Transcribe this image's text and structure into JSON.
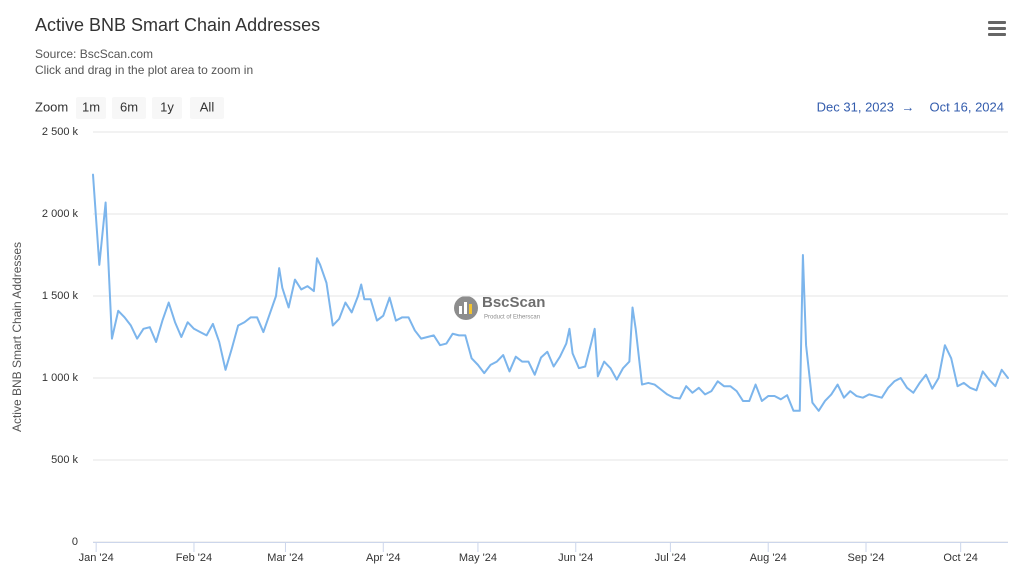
{
  "chart_data": {
    "type": "line",
    "title": "Active BNB Smart Chain Addresses",
    "source": "Source: BscScan.com",
    "instruction": "Click and drag in the plot area to zoom in",
    "zoom": {
      "label": "Zoom",
      "buttons": [
        "1m",
        "6m",
        "1y",
        "All"
      ]
    },
    "range": {
      "from": "Dec 31, 2023",
      "separator": "→",
      "to": "Oct 16, 2024"
    },
    "watermark": {
      "title": "BscScan",
      "subtitle": "Product of Etherscan"
    },
    "y_label": "Active BNB Smart Chain Addresses",
    "grid": true,
    "xlim": [
      "2023-12-31",
      "2024-10-16"
    ],
    "xticks": [
      {
        "value": "2024-01-01",
        "label": "Jan '24"
      },
      {
        "value": "2024-02-01",
        "label": "Feb '24"
      },
      {
        "value": "2024-03-01",
        "label": "Mar '24"
      },
      {
        "value": "2024-04-01",
        "label": "Apr '24"
      },
      {
        "value": "2024-05-01",
        "label": "May '24"
      },
      {
        "value": "2024-06-01",
        "label": "Jun '24"
      },
      {
        "value": "2024-07-01",
        "label": "Jul '24"
      },
      {
        "value": "2024-08-01",
        "label": "Aug '24"
      },
      {
        "value": "2024-09-01",
        "label": "Sep '24"
      },
      {
        "value": "2024-10-01",
        "label": "Oct '24"
      }
    ],
    "ylim": [
      0,
      2500000
    ],
    "yticks": [
      {
        "value": 0,
        "label": "0"
      },
      {
        "value": 500000,
        "label": "500 k"
      },
      {
        "value": 1000000,
        "label": "1 000 k"
      },
      {
        "value": 1500000,
        "label": "1 500 k"
      },
      {
        "value": 2000000,
        "label": "2 000 k"
      },
      {
        "value": 2500000,
        "label": "2 500 k"
      }
    ],
    "x": [
      "2023-12-31",
      "2024-01-02",
      "2024-01-04",
      "2024-01-06",
      "2024-01-08",
      "2024-01-10",
      "2024-01-12",
      "2024-01-14",
      "2024-01-16",
      "2024-01-18",
      "2024-01-20",
      "2024-01-22",
      "2024-01-24",
      "2024-01-26",
      "2024-01-28",
      "2024-01-30",
      "2024-02-01",
      "2024-02-03",
      "2024-02-05",
      "2024-02-07",
      "2024-02-09",
      "2024-02-11",
      "2024-02-13",
      "2024-02-15",
      "2024-02-17",
      "2024-02-19",
      "2024-02-21",
      "2024-02-23",
      "2024-02-25",
      "2024-02-27",
      "2024-02-28",
      "2024-02-29",
      "2024-03-02",
      "2024-03-04",
      "2024-03-06",
      "2024-03-08",
      "2024-03-10",
      "2024-03-11",
      "2024-03-12",
      "2024-03-14",
      "2024-03-16",
      "2024-03-18",
      "2024-03-20",
      "2024-03-22",
      "2024-03-24",
      "2024-03-25",
      "2024-03-26",
      "2024-03-28",
      "2024-03-30",
      "2024-04-01",
      "2024-04-03",
      "2024-04-05",
      "2024-04-07",
      "2024-04-09",
      "2024-04-11",
      "2024-04-13",
      "2024-04-15",
      "2024-04-17",
      "2024-04-19",
      "2024-04-21",
      "2024-04-23",
      "2024-04-25",
      "2024-04-27",
      "2024-04-29",
      "2024-05-01",
      "2024-05-03",
      "2024-05-05",
      "2024-05-07",
      "2024-05-09",
      "2024-05-11",
      "2024-05-13",
      "2024-05-15",
      "2024-05-17",
      "2024-05-19",
      "2024-05-21",
      "2024-05-23",
      "2024-05-25",
      "2024-05-27",
      "2024-05-29",
      "2024-05-30",
      "2024-05-31",
      "2024-06-02",
      "2024-06-04",
      "2024-06-06",
      "2024-06-07",
      "2024-06-08",
      "2024-06-10",
      "2024-06-12",
      "2024-06-14",
      "2024-06-16",
      "2024-06-18",
      "2024-06-19",
      "2024-06-20",
      "2024-06-22",
      "2024-06-24",
      "2024-06-26",
      "2024-06-28",
      "2024-06-30",
      "2024-07-02",
      "2024-07-04",
      "2024-07-06",
      "2024-07-08",
      "2024-07-10",
      "2024-07-12",
      "2024-07-14",
      "2024-07-16",
      "2024-07-18",
      "2024-07-20",
      "2024-07-22",
      "2024-07-24",
      "2024-07-26",
      "2024-07-28",
      "2024-07-30",
      "2024-08-01",
      "2024-08-03",
      "2024-08-05",
      "2024-08-07",
      "2024-08-09",
      "2024-08-11",
      "2024-08-12",
      "2024-08-13",
      "2024-08-15",
      "2024-08-17",
      "2024-08-19",
      "2024-08-21",
      "2024-08-23",
      "2024-08-25",
      "2024-08-27",
      "2024-08-29",
      "2024-08-31",
      "2024-09-02",
      "2024-09-04",
      "2024-09-06",
      "2024-09-08",
      "2024-09-10",
      "2024-09-12",
      "2024-09-14",
      "2024-09-16",
      "2024-09-18",
      "2024-09-20",
      "2024-09-22",
      "2024-09-24",
      "2024-09-26",
      "2024-09-28",
      "2024-09-30",
      "2024-10-02",
      "2024-10-04",
      "2024-10-06",
      "2024-10-08",
      "2024-10-10",
      "2024-10-12",
      "2024-10-14",
      "2024-10-16"
    ],
    "series": [
      {
        "name": "Active BNB Smart Chain Addresses",
        "color": "#7cb5ec",
        "values": [
          2240000,
          1690000,
          2070000,
          1240000,
          1410000,
          1370000,
          1320000,
          1240000,
          1300000,
          1310000,
          1220000,
          1350000,
          1460000,
          1340000,
          1250000,
          1340000,
          1300000,
          1280000,
          1260000,
          1330000,
          1220000,
          1050000,
          1180000,
          1320000,
          1340000,
          1370000,
          1370000,
          1280000,
          1390000,
          1500000,
          1670000,
          1550000,
          1430000,
          1600000,
          1540000,
          1560000,
          1530000,
          1730000,
          1690000,
          1580000,
          1320000,
          1360000,
          1460000,
          1400000,
          1500000,
          1570000,
          1480000,
          1480000,
          1350000,
          1380000,
          1490000,
          1350000,
          1370000,
          1370000,
          1290000,
          1240000,
          1250000,
          1260000,
          1200000,
          1210000,
          1270000,
          1260000,
          1260000,
          1120000,
          1080000,
          1030000,
          1080000,
          1100000,
          1140000,
          1040000,
          1130000,
          1100000,
          1100000,
          1020000,
          1125000,
          1160000,
          1070000,
          1130000,
          1210000,
          1300000,
          1150000,
          1060000,
          1070000,
          1220000,
          1300000,
          1010000,
          1100000,
          1060000,
          990000,
          1060000,
          1100000,
          1430000,
          1300000,
          960000,
          970000,
          960000,
          930000,
          900000,
          880000,
          875000,
          950000,
          910000,
          940000,
          900000,
          920000,
          980000,
          950000,
          950000,
          920000,
          860000,
          860000,
          960000,
          860000,
          890000,
          890000,
          870000,
          895000,
          800000,
          800000,
          1750000,
          1200000,
          850000,
          800000,
          860000,
          900000,
          960000,
          880000,
          920000,
          890000,
          880000,
          900000,
          890000,
          880000,
          940000,
          980000,
          1000000,
          940000,
          910000,
          970000,
          1020000,
          935000,
          1000000,
          1200000,
          1120000,
          950000,
          970000,
          940000,
          925000,
          1040000,
          990000,
          950000,
          1050000,
          1000000
        ]
      }
    ]
  }
}
